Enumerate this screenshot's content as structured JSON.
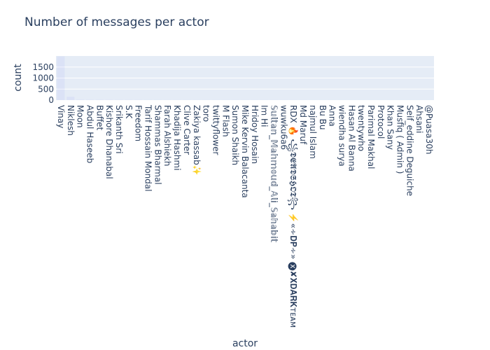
{
  "chart_data": {
    "type": "bar",
    "title": "Number of messages per actor",
    "xlabel": "actor",
    "ylabel": "count",
    "ylim": [
      0,
      2000
    ],
    "yticks": [
      0,
      500,
      1000,
      1500
    ],
    "grid": true,
    "colors": {
      "plot_bg": "#e5ecf6",
      "grid": "#ffffff",
      "bar": "#636efa",
      "text": "#2a3f5f"
    },
    "categories": [
      "Vinay",
      "Niklesh",
      "Moon",
      "Abdul Haseeb",
      "Buffet",
      "Kishore Dhanabal",
      "Srikanth Sri",
      "S.K",
      "Freedom",
      "Tarif Hossain Mondal",
      "Shammas Bharmal",
      "Farah Alshiekh",
      "Khadija Hashmi",
      "Clive Carter",
      "Zakiya kassab✨",
      "toro",
      "twittyflower",
      "M Flash",
      "Sumon Shaikh",
      "Mike Kervin Balacanta",
      "Hridoy Hosain",
      "Im Hi",
      "𝕊𝕦𝕝𝕥𝕒𝕟_𝕄𝕒𝕙𝕞𝕠𝕦𝕕_𝔸𝕝𝕚_𝕊𝕒𝕙𝕒𝕓𝕚𝕥",
      "wuwku6a6",
      "RDX 🔥 ꧁𝕯𝕰𝕬𝕯𝕾𝕳𝕺𝕿꧂ ⚡️«∻𝐃𝐏∻» 🅧✘𝐗𝐃𝐀𝐑𝐊ᴛᴇᴀᴍ",
      "Md Maruf",
      "najmul Islam",
      "Bu Bu",
      "Anna",
      "wiendha surya",
      "Hasan Al Banna",
      "twentywho",
      "Parimal Makhal",
      "Protocol",
      "Khan Sany",
      "Musfiq ( Admin )",
      "Seif_eddine Deguiche",
      "Ahsani",
      "@Puasa30h"
    ],
    "values": [
      1980,
      150,
      20,
      15,
      12,
      10,
      9,
      8,
      8,
      7,
      7,
      6,
      6,
      5,
      5,
      5,
      4,
      4,
      4,
      4,
      3,
      3,
      3,
      3,
      3,
      3,
      2,
      2,
      2,
      2,
      2,
      2,
      2,
      2,
      1,
      1,
      1,
      1,
      1
    ]
  }
}
